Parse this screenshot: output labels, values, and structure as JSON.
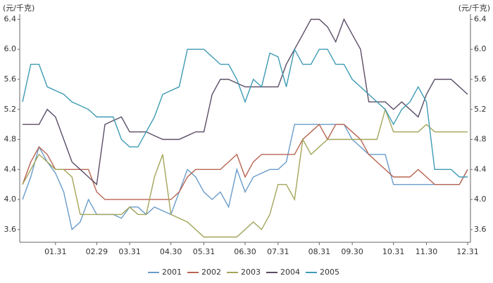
{
  "chart_data": {
    "type": "line",
    "y_label": "(元/千克)",
    "y2_label": "(元/千克)",
    "categories": [
      null,
      null,
      null,
      null,
      "01.31",
      null,
      null,
      null,
      null,
      "02.29",
      null,
      null,
      null,
      "03.31",
      null,
      null,
      null,
      null,
      "04.30",
      null,
      null,
      null,
      "05.31",
      null,
      null,
      null,
      null,
      "06.30",
      null,
      null,
      null,
      "07.31",
      null,
      null,
      null,
      null,
      "08.31",
      null,
      null,
      null,
      "09.30",
      null,
      null,
      null,
      null,
      "10.31",
      null,
      null,
      null,
      "11.30",
      null,
      null,
      null,
      null,
      "12.31"
    ],
    "series": [
      {
        "name": "2001",
        "color": "#6a9cc9",
        "values": [
          4.0,
          4.3,
          4.7,
          4.5,
          4.35,
          4.1,
          3.6,
          3.7,
          4.0,
          3.8,
          3.8,
          3.8,
          3.75,
          3.9,
          3.9,
          3.8,
          3.9,
          3.85,
          3.8,
          4.1,
          4.4,
          4.3,
          4.1,
          4.0,
          4.1,
          3.9,
          4.4,
          4.1,
          4.3,
          4.35,
          4.4,
          4.4,
          4.5,
          5.0,
          5.0,
          5.0,
          5.0,
          5.0,
          5.0,
          5.0,
          4.8,
          4.7,
          4.6,
          4.6,
          4.6,
          4.2,
          4.2,
          4.2,
          4.2,
          4.2,
          4.2,
          4.2,
          4.2,
          4.2,
          4.4
        ]
      },
      {
        "name": "2002",
        "color": "#b86552",
        "values": [
          4.2,
          4.5,
          4.7,
          4.6,
          4.4,
          4.4,
          4.4,
          4.4,
          4.4,
          4.1,
          4.0,
          4.0,
          4.0,
          4.0,
          4.0,
          4.0,
          4.0,
          4.0,
          4.0,
          4.1,
          4.3,
          4.4,
          4.4,
          4.4,
          4.4,
          4.5,
          4.6,
          4.3,
          4.5,
          4.6,
          4.6,
          4.6,
          4.6,
          4.6,
          4.8,
          4.9,
          5.0,
          4.8,
          5.0,
          5.0,
          4.9,
          4.8,
          4.6,
          4.5,
          4.4,
          4.3,
          4.3,
          4.3,
          4.4,
          4.3,
          4.2,
          4.2,
          4.2,
          4.2,
          4.4
        ]
      },
      {
        "name": "2003",
        "color": "#a3a55a",
        "values": [
          4.2,
          4.4,
          4.6,
          4.5,
          4.4,
          4.4,
          4.3,
          3.8,
          3.8,
          3.8,
          3.8,
          3.8,
          3.8,
          3.9,
          3.8,
          3.8,
          4.3,
          4.6,
          3.8,
          3.75,
          3.7,
          3.6,
          3.5,
          3.5,
          3.5,
          3.5,
          3.5,
          3.6,
          3.7,
          3.6,
          3.8,
          4.2,
          4.2,
          4.0,
          4.8,
          4.6,
          4.7,
          4.8,
          4.8,
          4.8,
          4.8,
          4.8,
          4.8,
          4.8,
          5.2,
          4.9,
          4.9,
          4.9,
          4.9,
          5.0,
          4.9,
          4.9,
          4.9,
          4.9,
          4.9
        ]
      },
      {
        "name": "2004",
        "color": "#5b4d66",
        "values": [
          5.0,
          5.0,
          5.0,
          5.2,
          5.1,
          4.8,
          4.5,
          4.4,
          4.3,
          4.2,
          5.0,
          5.05,
          5.1,
          4.9,
          4.9,
          4.9,
          4.85,
          4.8,
          4.8,
          4.8,
          4.85,
          4.9,
          4.9,
          5.4,
          5.6,
          5.6,
          5.55,
          5.5,
          5.5,
          5.5,
          5.5,
          5.5,
          5.8,
          6.0,
          6.2,
          6.4,
          6.4,
          6.3,
          6.1,
          6.4,
          6.2,
          6.0,
          5.3,
          5.3,
          5.3,
          5.2,
          5.3,
          5.2,
          5.1,
          5.4,
          5.6,
          5.6,
          5.6,
          5.5,
          5.4
        ]
      },
      {
        "name": "2005",
        "color": "#3e9bb4",
        "values": [
          5.3,
          5.8,
          5.8,
          5.5,
          5.45,
          5.4,
          5.3,
          5.25,
          5.2,
          5.1,
          5.1,
          5.1,
          4.8,
          4.7,
          4.7,
          4.9,
          5.1,
          5.4,
          5.45,
          5.5,
          6.0,
          6.0,
          6.0,
          5.9,
          5.8,
          5.8,
          5.6,
          5.3,
          5.6,
          5.5,
          5.95,
          5.9,
          5.5,
          6.0,
          5.8,
          5.8,
          6.0,
          6.0,
          5.8,
          5.8,
          5.6,
          5.5,
          5.4,
          5.3,
          5.2,
          5.0,
          5.2,
          5.3,
          5.5,
          5.3,
          4.4,
          4.4,
          4.4,
          4.3,
          4.3
        ]
      }
    ],
    "ylim": [
      3.43,
      6.47
    ],
    "yticks": [
      3.6,
      {
        "value": 4,
        "label": "4.0"
      },
      4.4,
      4.8,
      5.2,
      5.6,
      {
        "value": 6,
        "label": "6.0"
      },
      6.4
    ],
    "y2lim": [
      3.43,
      6.47
    ],
    "y2ticks": [
      3.6,
      {
        "value": 4,
        "label": "4.0"
      },
      4.4,
      4.8,
      5.2,
      5.6,
      {
        "value": 6,
        "label": "6.0"
      },
      6.4
    ],
    "legend": "bottom",
    "grid": false
  }
}
